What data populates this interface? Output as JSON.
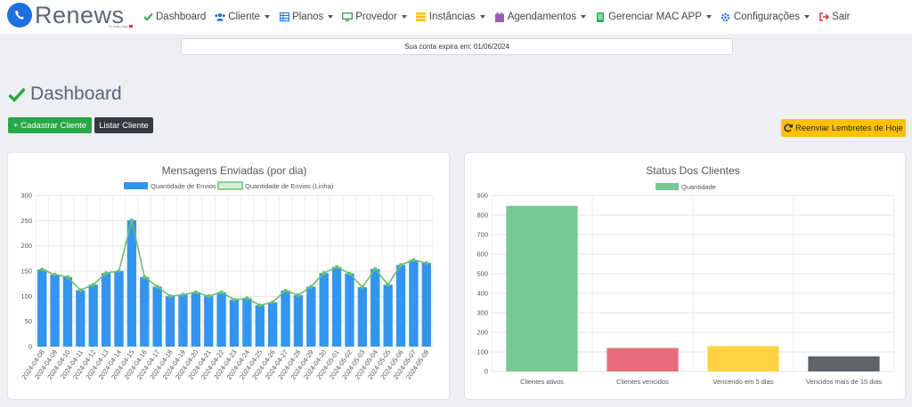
{
  "brand": {
    "name": "Renews",
    "sub": "by AutoZapp"
  },
  "nav": {
    "items": [
      {
        "label": "Dashboard",
        "icon": "check-icon",
        "dropdown": false,
        "color": "#28a745"
      },
      {
        "label": "Cliente",
        "icon": "users-icon",
        "dropdown": true,
        "color": "#1f6fe0"
      },
      {
        "label": "Planos",
        "icon": "table-icon",
        "dropdown": true,
        "color": "#1f6fe0"
      },
      {
        "label": "Provedor",
        "icon": "monitor-icon",
        "dropdown": true,
        "color": "#28a745"
      },
      {
        "label": "Instâncias",
        "icon": "server-icon",
        "dropdown": true,
        "color": "#ffc107"
      },
      {
        "label": "Agendamentos",
        "icon": "calendar-icon",
        "dropdown": true,
        "color": "#9b59b6"
      },
      {
        "label": "Gerenciar MAC APP",
        "icon": "mobile-icon",
        "dropdown": true,
        "color": "#28a745"
      },
      {
        "label": "Configurações",
        "icon": "cog-icon",
        "dropdown": true,
        "color": "#1f6fe0"
      },
      {
        "label": "Sair",
        "icon": "signout-icon",
        "dropdown": false,
        "color": "#dc3545"
      }
    ]
  },
  "expiry": "Sua conta expira em: 01/06/2024",
  "page": {
    "title": "Dashboard"
  },
  "buttons": {
    "add_client": "+ Cadastrar Cliente",
    "list_client": "Listar Cliente",
    "resend": "Reenviar Lembretes de Hoje"
  },
  "chart_data": [
    {
      "type": "bar",
      "title": "Mensagens Enviadas (por dia)",
      "categories": [
        "2024-04-08",
        "2024-04-09",
        "2024-04-10",
        "2024-04-11",
        "2024-04-12",
        "2024-04-13",
        "2024-04-14",
        "2024-04-15",
        "2024-04-16",
        "2024-04-17",
        "2024-04-18",
        "2024-04-19",
        "2024-04-20",
        "2024-04-21",
        "2024-04-22",
        "2024-04-23",
        "2024-04-24",
        "2024-04-25",
        "2024-04-26",
        "2024-04-27",
        "2024-04-28",
        "2024-04-29",
        "2024-04-30",
        "2024-05-01",
        "2024-05-02",
        "2024-05-03",
        "2024-05-04",
        "2024-05-05",
        "2024-05-06",
        "2024-05-07",
        "2024-05-08"
      ],
      "series": [
        {
          "name": "Quantidade de Envios",
          "kind": "bar",
          "color": "#3395f0",
          "values": [
            153,
            143,
            138,
            112,
            123,
            146,
            150,
            251,
            138,
            119,
            100,
            103,
            108,
            100,
            108,
            93,
            96,
            82,
            88,
            111,
            102,
            119,
            146,
            158,
            145,
            118,
            154,
            123,
            162,
            172,
            166
          ]
        },
        {
          "name": "Quantidade de Envios (Linha)",
          "kind": "line",
          "color": "#6cc070",
          "values": [
            153,
            143,
            138,
            112,
            123,
            146,
            150,
            251,
            138,
            119,
            100,
            103,
            108,
            100,
            108,
            93,
            96,
            82,
            88,
            111,
            102,
            119,
            146,
            158,
            145,
            118,
            154,
            123,
            162,
            172,
            166
          ]
        }
      ],
      "ylim": [
        0,
        300
      ],
      "yticks": [
        0,
        50,
        100,
        150,
        200,
        250,
        300
      ],
      "grid": true,
      "legend": "top"
    },
    {
      "type": "bar",
      "title": "Status Dos Clientes",
      "categories": [
        "Clientes ativos",
        "Clientes vencidos",
        "Vencendo em 5 dias",
        "Vencidos mais de 15 dias"
      ],
      "series": [
        {
          "name": "Quantidade",
          "values": [
            847,
            120,
            130,
            77
          ],
          "colors": [
            "#76c893",
            "#e76b7a",
            "#ffd23f",
            "#5f6469"
          ]
        }
      ],
      "ylim": [
        0,
        900
      ],
      "yticks": [
        0,
        100,
        200,
        300,
        400,
        500,
        600,
        700,
        800,
        900
      ],
      "grid": true,
      "legend": "top"
    }
  ]
}
